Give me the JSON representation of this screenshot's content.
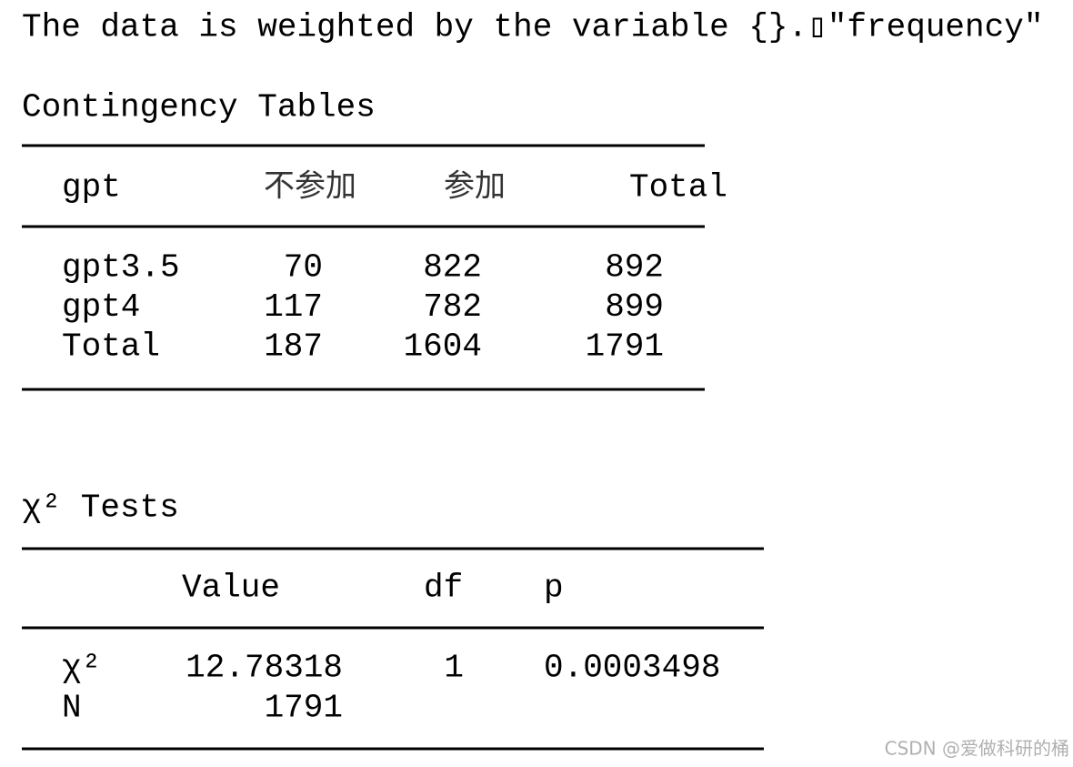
{
  "note": "The data is weighted by the variable {}.▯\"frequency\"",
  "contingency": {
    "title": "Contingency Tables",
    "header": [
      "gpt",
      "不参加",
      "参加",
      "Total"
    ],
    "rows": [
      [
        "gpt3.5",
        "70",
        "822",
        "892"
      ],
      [
        "gpt4",
        "117",
        "782",
        "899"
      ],
      [
        "Total",
        "187",
        "1604",
        "1791"
      ]
    ]
  },
  "chi2": {
    "title": "χ² Tests",
    "header": [
      "Value",
      "df",
      "p"
    ],
    "rows": [
      [
        "χ²",
        "12.78318",
        "1",
        "0.0003498"
      ],
      [
        "N",
        "1791"
      ]
    ]
  },
  "watermark": "CSDN @爱做科研的桶"
}
